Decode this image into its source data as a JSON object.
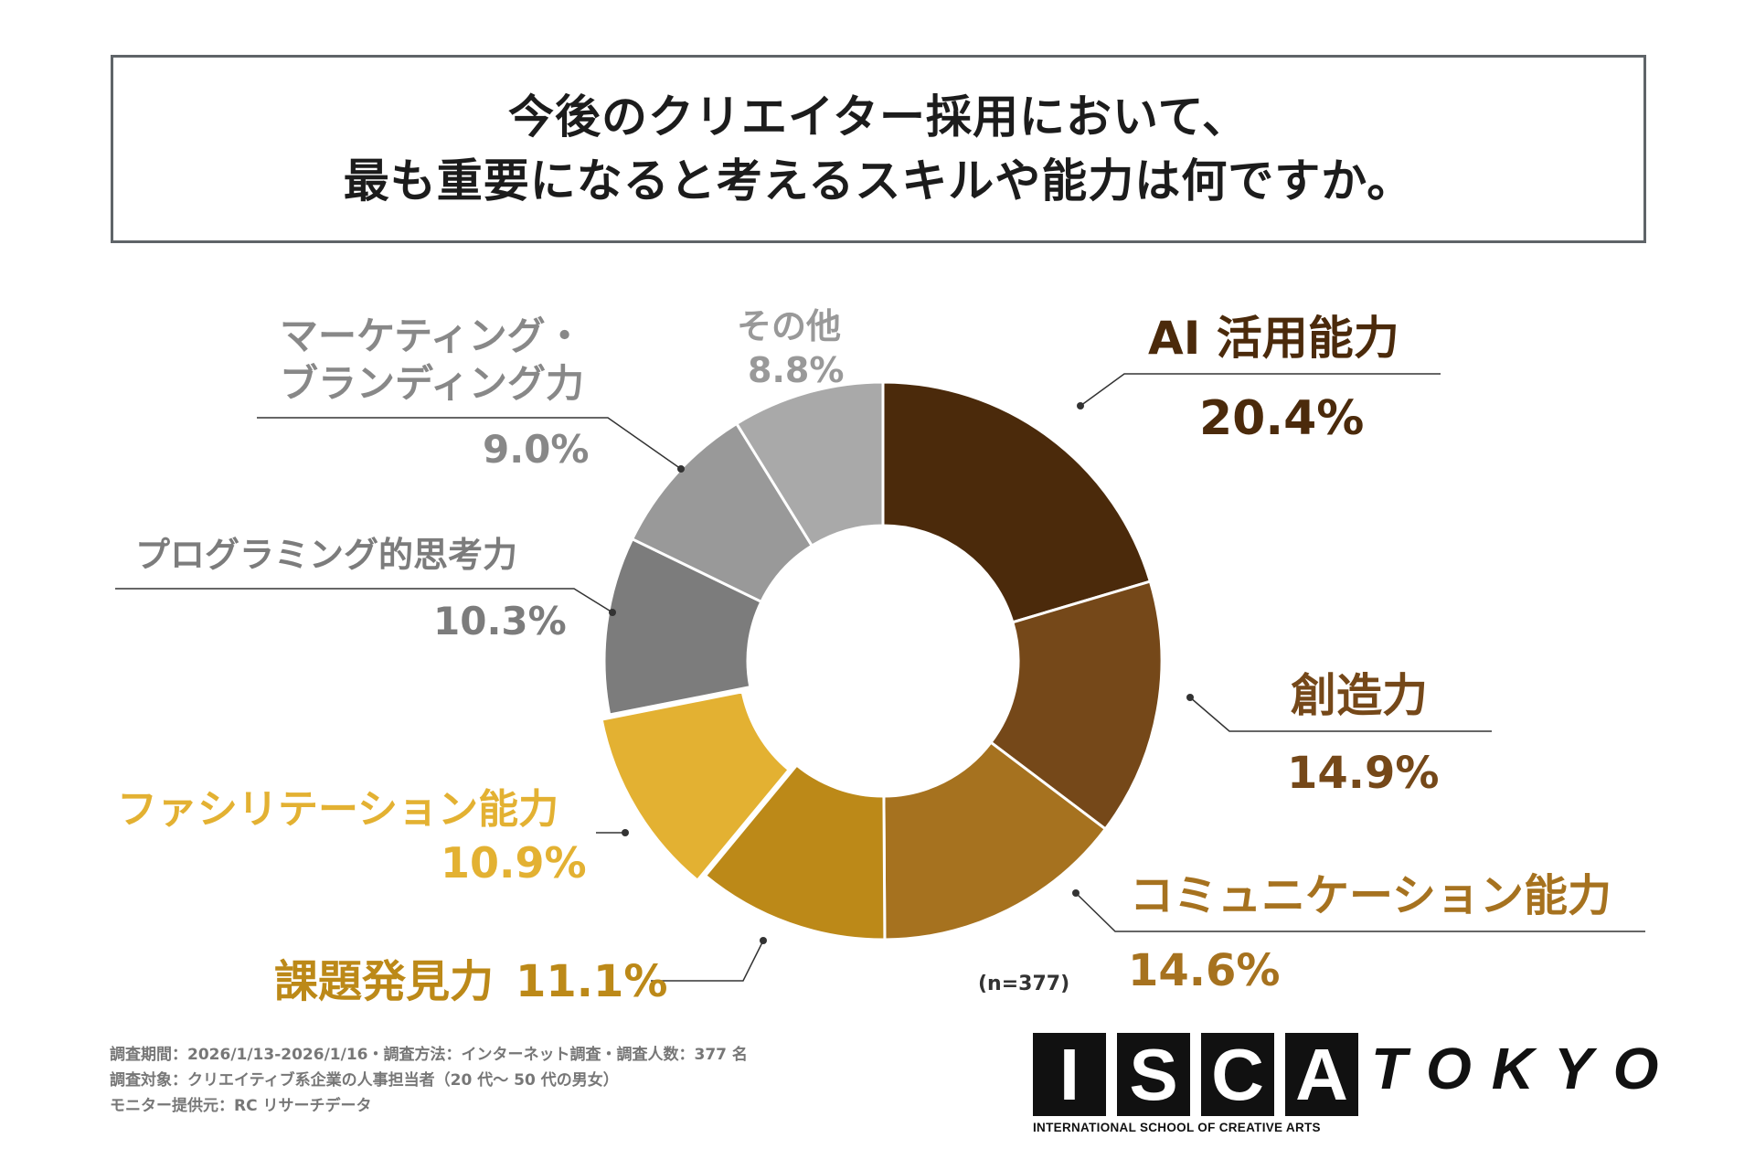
{
  "title": {
    "line1": "今後のクリエイター採用において、",
    "line2": "最も重要になると考えるスキルや能力は何ですか。"
  },
  "chart_data": {
    "type": "pie",
    "donut": true,
    "categories": [
      "AI 活用能力",
      "創造力",
      "コミュニケーション能力",
      "課題発見力",
      "ファシリテーション能力",
      "プログラミング的思考力",
      "マーケティング・ブランディング力",
      "その他"
    ],
    "values": [
      20.4,
      14.9,
      14.6,
      11.1,
      10.9,
      10.3,
      9.0,
      8.8
    ],
    "value_labels": [
      "20.4%",
      "14.9%",
      "14.6%",
      "11.1%",
      "10.9%",
      "10.3%",
      "9.0%",
      "8.8%"
    ],
    "colors": [
      "#4b2a0b",
      "#754819",
      "#a6721f",
      "#bc8918",
      "#e3b132",
      "#7c7c7c",
      "#999999",
      "#a9a9a9"
    ],
    "label_colors": [
      "#4b2a0b",
      "#754819",
      "#a6721f",
      "#bc8918",
      "#e3b132",
      "#7c7c7c",
      "#888888",
      "#999999"
    ],
    "n_label": "(n=377)"
  },
  "labels": {
    "ai": {
      "name": "AI 活用能力",
      "value": "20.4%"
    },
    "creativity": {
      "name": "創造力",
      "value": "14.9%"
    },
    "communication": {
      "name": "コミュニケーション能力",
      "value": "14.6%"
    },
    "problem": {
      "name": "課題発見力",
      "value": "11.1%"
    },
    "facilitation": {
      "name": "ファシリテーション能力",
      "value": "10.9%"
    },
    "programming": {
      "name": "プログラミング的思考力",
      "value": "10.3%"
    },
    "marketing": {
      "line1": "マーケティング・",
      "line2": "ブランディング力",
      "value": "9.0%"
    },
    "other": {
      "name": "その他",
      "value": "8.8%"
    }
  },
  "footer": {
    "line1": "調査期間：2026/1/13-2026/1/16・調査方法：インターネット調査・調査人数：377 名",
    "line2": "調査対象：クリエイティブ系企業の人事担当者（20 代～ 50 代の男女）",
    "line3": "モニター提供元：RC リサーチデータ"
  },
  "logo": {
    "letters": [
      "I",
      "S",
      "C",
      "A"
    ],
    "tokyo": "TOKYO",
    "subtitle": "INTERNATIONAL SCHOOL OF CREATIVE ARTS"
  }
}
